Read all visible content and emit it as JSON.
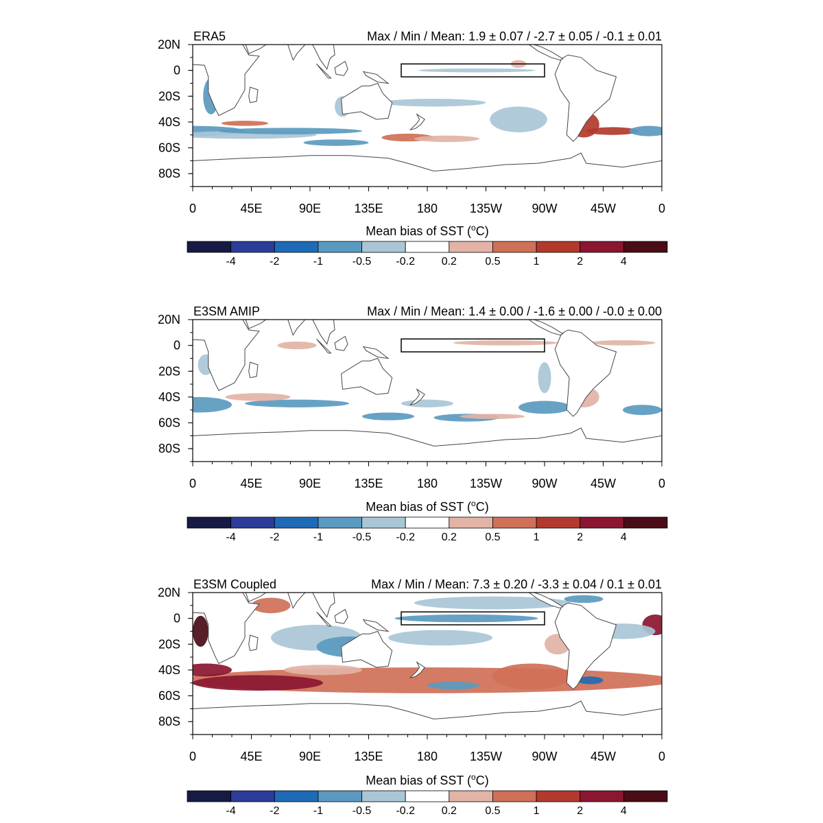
{
  "chart_data": [
    {
      "type": "heatmap",
      "title": "ERA5",
      "stats_label": "Max / Min / Mean:",
      "stats": "1.9 ± 0.07 / -2.7 ± 0.05 / -0.1 ± 0.01",
      "max": 1.9,
      "max_err": 0.07,
      "min": -2.7,
      "min_err": 0.05,
      "mean": -0.1,
      "mean_err": 0.01,
      "lat_ticks": [
        "20N",
        "0",
        "20S",
        "40S",
        "60S",
        "80S"
      ],
      "lat_values": [
        20,
        0,
        -20,
        -40,
        -60,
        -80
      ],
      "lon_ticks": [
        "0",
        "45E",
        "90E",
        "135E",
        "180",
        "135W",
        "90W",
        "45W",
        "0"
      ],
      "lon_values": [
        0,
        45,
        90,
        135,
        180,
        225,
        270,
        315,
        360
      ],
      "xlim": [
        0,
        360
      ],
      "ylim": [
        -90,
        20
      ],
      "region_box": {
        "lon": [
          160,
          270
        ],
        "lat": [
          -5,
          5
        ]
      },
      "colorbar_label": "Mean bias of SST (",
      "colorbar_unit": "C)",
      "colorbar_degree": "o",
      "colorbar_ticks": [
        "-4",
        "-2",
        "-1",
        "-0.5",
        "-0.2",
        "0.2",
        "0.5",
        "1",
        "2",
        "4"
      ],
      "bias_regions": [
        {
          "lon": 0,
          "lat": -47,
          "rx": 40,
          "ry": 4,
          "level": 3
        },
        {
          "lon": 40,
          "lat": -50,
          "rx": 55,
          "ry": 3,
          "level": 4
        },
        {
          "lon": 75,
          "lat": -47,
          "rx": 55,
          "ry": 2.5,
          "level": 3
        },
        {
          "lon": 40,
          "lat": -41,
          "rx": 18,
          "ry": 2,
          "level": 7
        },
        {
          "lon": 110,
          "lat": -56,
          "rx": 25,
          "ry": 2.5,
          "level": 3
        },
        {
          "lon": 165,
          "lat": -52,
          "rx": 20,
          "ry": 3,
          "level": 7
        },
        {
          "lon": 195,
          "lat": -53,
          "rx": 25,
          "ry": 2.5,
          "level": 6
        },
        {
          "lon": 250,
          "lat": -38,
          "rx": 22,
          "ry": 10,
          "level": 4
        },
        {
          "lon": 300,
          "lat": -42,
          "rx": 12,
          "ry": 10,
          "level": 8
        },
        {
          "lon": 322,
          "lat": -47,
          "rx": 20,
          "ry": 3,
          "level": 8
        },
        {
          "lon": 350,
          "lat": -47,
          "rx": 15,
          "ry": 4,
          "level": 3
        },
        {
          "lon": 218,
          "lat": 0,
          "rx": 45,
          "ry": 1.5,
          "level": 4
        },
        {
          "lon": 14,
          "lat": -20,
          "rx": 6,
          "ry": 14,
          "level": 3
        },
        {
          "lon": 115,
          "lat": -28,
          "rx": 6,
          "ry": 8,
          "level": 4
        },
        {
          "lon": 185,
          "lat": -25,
          "rx": 40,
          "ry": 3,
          "level": 4
        },
        {
          "lon": 250,
          "lat": 5,
          "rx": 6,
          "ry": 3,
          "level": 6
        }
      ]
    },
    {
      "type": "heatmap",
      "title": "E3SM AMIP",
      "stats_label": "Max / Min / Mean:",
      "stats": "1.4 ± 0.00 / -1.6 ± 0.00 / -0.0 ± 0.00",
      "max": 1.4,
      "max_err": 0.0,
      "min": -1.6,
      "min_err": 0.0,
      "mean": -0.0,
      "mean_err": 0.0,
      "lat_ticks": [
        "20N",
        "0",
        "20S",
        "40S",
        "60S",
        "80S"
      ],
      "lat_values": [
        20,
        0,
        -20,
        -40,
        -60,
        -80
      ],
      "lon_ticks": [
        "0",
        "45E",
        "90E",
        "135E",
        "180",
        "135W",
        "90W",
        "45W",
        "0"
      ],
      "lon_values": [
        0,
        45,
        90,
        135,
        180,
        225,
        270,
        315,
        360
      ],
      "xlim": [
        0,
        360
      ],
      "ylim": [
        -90,
        20
      ],
      "region_box": {
        "lon": [
          160,
          270
        ],
        "lat": [
          -5,
          5
        ]
      },
      "colorbar_label": "Mean bias of SST (",
      "colorbar_unit": "C)",
      "colorbar_degree": "o",
      "colorbar_ticks": [
        "-4",
        "-2",
        "-1",
        "-0.5",
        "-0.2",
        "0.2",
        "0.5",
        "1",
        "2",
        "4"
      ],
      "bias_regions": [
        {
          "lon": 5,
          "lat": -46,
          "rx": 25,
          "ry": 6,
          "level": 3
        },
        {
          "lon": 80,
          "lat": -45,
          "rx": 40,
          "ry": 3,
          "level": 3
        },
        {
          "lon": 150,
          "lat": -55,
          "rx": 20,
          "ry": 3,
          "level": 3
        },
        {
          "lon": 210,
          "lat": -56,
          "rx": 25,
          "ry": 3,
          "level": 3
        },
        {
          "lon": 270,
          "lat": -48,
          "rx": 20,
          "ry": 5,
          "level": 3
        },
        {
          "lon": 300,
          "lat": -40,
          "rx": 12,
          "ry": 8,
          "level": 6
        },
        {
          "lon": 345,
          "lat": -50,
          "rx": 15,
          "ry": 4,
          "level": 3
        },
        {
          "lon": 80,
          "lat": 0,
          "rx": 15,
          "ry": 3,
          "level": 6
        },
        {
          "lon": 240,
          "lat": 2,
          "rx": 40,
          "ry": 2,
          "level": 6
        },
        {
          "lon": 330,
          "lat": 2,
          "rx": 25,
          "ry": 2,
          "level": 6
        },
        {
          "lon": 50,
          "lat": -40,
          "rx": 25,
          "ry": 3,
          "level": 6
        },
        {
          "lon": 230,
          "lat": -55,
          "rx": 25,
          "ry": 2,
          "level": 6
        },
        {
          "lon": 10,
          "lat": -15,
          "rx": 6,
          "ry": 8,
          "level": 4
        },
        {
          "lon": 270,
          "lat": -25,
          "rx": 5,
          "ry": 12,
          "level": 4
        },
        {
          "lon": 180,
          "lat": -45,
          "rx": 20,
          "ry": 3,
          "level": 4
        }
      ]
    },
    {
      "type": "heatmap",
      "title": "E3SM Coupled",
      "stats_label": "Max / Min / Mean:",
      "stats": "7.3 ± 0.20 / -3.3 ± 0.04 / 0.1 ± 0.01",
      "max": 7.3,
      "max_err": 0.2,
      "min": -3.3,
      "min_err": 0.04,
      "mean": 0.1,
      "mean_err": 0.01,
      "lat_ticks": [
        "20N",
        "0",
        "20S",
        "40S",
        "60S",
        "80S"
      ],
      "lat_values": [
        20,
        0,
        -20,
        -40,
        -60,
        -80
      ],
      "lon_ticks": [
        "0",
        "45E",
        "90E",
        "135E",
        "180",
        "135W",
        "90W",
        "45W",
        "0"
      ],
      "lon_values": [
        0,
        45,
        90,
        135,
        180,
        225,
        270,
        315,
        360
      ],
      "xlim": [
        0,
        360
      ],
      "ylim": [
        -90,
        20
      ],
      "region_box": {
        "lon": [
          160,
          270
        ],
        "lat": [
          -5,
          5
        ]
      },
      "colorbar_label": "Mean bias of SST (",
      "colorbar_unit": "C)",
      "colorbar_degree": "o",
      "colorbar_ticks": [
        "-4",
        "-2",
        "-1",
        "-0.5",
        "-0.2",
        "0.2",
        "0.5",
        "1",
        "2",
        "4"
      ],
      "bias_regions": [
        {
          "lon": 180,
          "lat": -48,
          "rx": 190,
          "ry": 10,
          "level": 7
        },
        {
          "lon": 50,
          "lat": -50,
          "rx": 50,
          "ry": 6,
          "level": 9
        },
        {
          "lon": 10,
          "lat": -40,
          "rx": 20,
          "ry": 5,
          "level": 9
        },
        {
          "lon": 6,
          "lat": -10,
          "rx": 6,
          "ry": 12,
          "level": 10
        },
        {
          "lon": 355,
          "lat": -5,
          "rx": 10,
          "ry": 8,
          "level": 9
        },
        {
          "lon": 95,
          "lat": -15,
          "rx": 35,
          "ry": 10,
          "level": 4
        },
        {
          "lon": 120,
          "lat": -22,
          "rx": 25,
          "ry": 8,
          "level": 3
        },
        {
          "lon": 210,
          "lat": 0,
          "rx": 55,
          "ry": 3,
          "level": 3
        },
        {
          "lon": 190,
          "lat": -15,
          "rx": 40,
          "ry": 6,
          "level": 4
        },
        {
          "lon": 230,
          "lat": 12,
          "rx": 60,
          "ry": 5,
          "level": 4
        },
        {
          "lon": 200,
          "lat": -52,
          "rx": 20,
          "ry": 3,
          "level": 3
        },
        {
          "lon": 305,
          "lat": -48,
          "rx": 10,
          "ry": 3,
          "level": 2
        },
        {
          "lon": 330,
          "lat": -10,
          "rx": 25,
          "ry": 6,
          "level": 4
        },
        {
          "lon": 300,
          "lat": 15,
          "rx": 15,
          "ry": 3,
          "level": 3
        },
        {
          "lon": 260,
          "lat": -45,
          "rx": 30,
          "ry": 10,
          "level": 7
        },
        {
          "lon": 280,
          "lat": -20,
          "rx": 10,
          "ry": 8,
          "level": 6
        },
        {
          "lon": 60,
          "lat": 10,
          "rx": 15,
          "ry": 6,
          "level": 7
        },
        {
          "lon": 100,
          "lat": -40,
          "rx": 30,
          "ry": 4,
          "level": 6
        }
      ]
    }
  ]
}
